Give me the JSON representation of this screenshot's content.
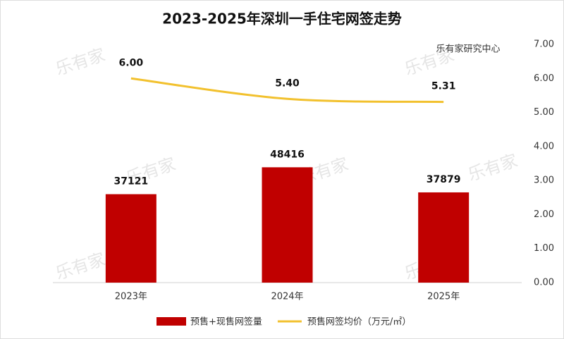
{
  "chart_data": {
    "type": "bar",
    "title": "2023-2025年深圳一手住宅网签走势",
    "source": "乐有家研究中心",
    "watermark": "乐有家",
    "categories": [
      "2023年",
      "2024年",
      "2025年"
    ],
    "series": [
      {
        "name": "预售+现售网签量",
        "type": "bar",
        "color": "#c00000",
        "values": [
          37121,
          48416,
          37879
        ]
      },
      {
        "name": "预售网签均价（万元/㎡）",
        "type": "line",
        "axis": "y2",
        "color": "#f2c12e",
        "values": [
          6.0,
          5.4,
          5.31
        ],
        "value_labels": [
          "6.00",
          "5.40",
          "5.31"
        ]
      }
    ],
    "ylim": [
      0,
      100000
    ],
    "y2lim": [
      0,
      7
    ],
    "y2ticks": [
      {
        "value": 0,
        "label": "0.00"
      },
      {
        "value": 1,
        "label": "1.00"
      },
      {
        "value": 2,
        "label": "2.00"
      },
      {
        "value": 3,
        "label": "3.00"
      },
      {
        "value": 4,
        "label": "4.00"
      },
      {
        "value": 5,
        "label": "5.00"
      },
      {
        "value": 6,
        "label": "6.00"
      },
      {
        "value": 7,
        "label": "7.00"
      }
    ]
  }
}
